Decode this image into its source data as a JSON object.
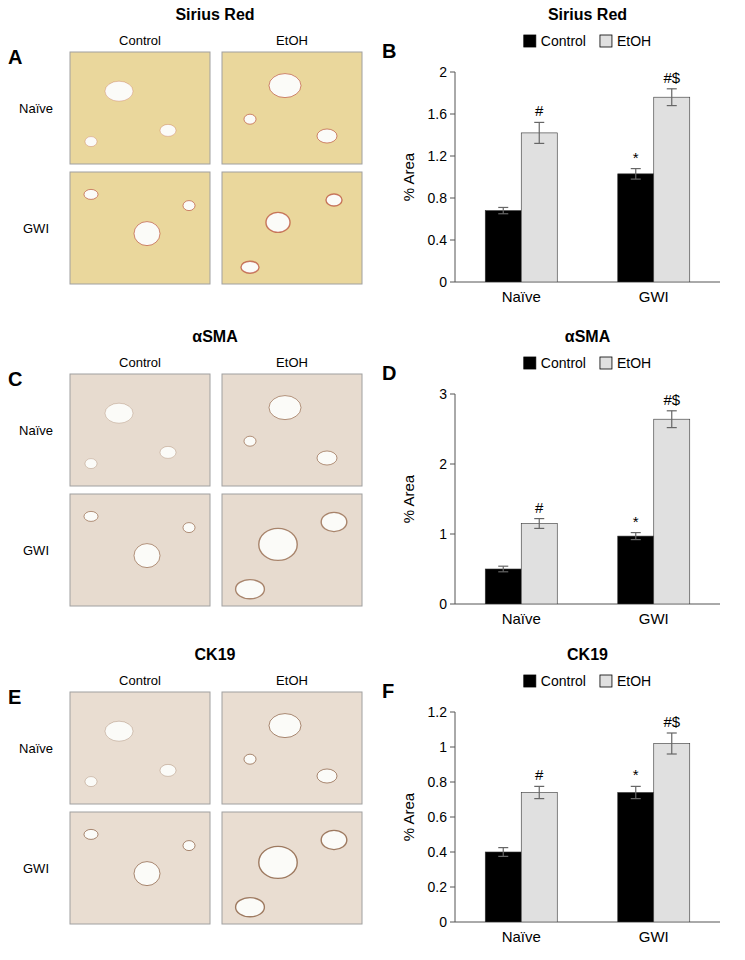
{
  "image_panels": [
    {
      "panel": "A",
      "title": "Sirius Red",
      "columns": [
        "Control",
        "EtOH"
      ],
      "rows": [
        "Naïve",
        "GWI"
      ]
    },
    {
      "panel": "C",
      "title": "αSMA",
      "columns": [
        "Control",
        "EtOH"
      ],
      "rows": [
        "Naïve",
        "GWI"
      ]
    },
    {
      "panel": "E",
      "title": "CK19",
      "columns": [
        "Control",
        "EtOH"
      ],
      "rows": [
        "Naïve",
        "GWI"
      ]
    }
  ],
  "chart_data": [
    {
      "type": "bar",
      "panel": "B",
      "title": "Sirius Red",
      "y_label": "% Area",
      "legend": "top",
      "categories": [
        "Naïve",
        "GWI"
      ],
      "series": [
        {
          "name": "Control",
          "color": "#000000",
          "values": [
            0.68,
            1.03
          ],
          "errors": [
            0.03,
            0.05
          ],
          "annotations": [
            null,
            "*"
          ]
        },
        {
          "name": "EtOH",
          "color": "#e0e0e0",
          "values": [
            1.42,
            1.76
          ],
          "errors": [
            0.1,
            0.08
          ],
          "annotations": [
            "#",
            "#$"
          ]
        }
      ],
      "ylim": [
        0,
        2
      ],
      "yticks": [
        0,
        0.4,
        0.8,
        1.2,
        1.6,
        2
      ],
      "grid": false
    },
    {
      "type": "bar",
      "panel": "D",
      "title": "αSMA",
      "y_label": "% Area",
      "legend": "top",
      "categories": [
        "Naïve",
        "GWI"
      ],
      "series": [
        {
          "name": "Control",
          "color": "#000000",
          "values": [
            0.5,
            0.97
          ],
          "errors": [
            0.04,
            0.05
          ],
          "annotations": [
            null,
            "*"
          ]
        },
        {
          "name": "EtOH",
          "color": "#e0e0e0",
          "values": [
            1.15,
            2.64
          ],
          "errors": [
            0.07,
            0.12
          ],
          "annotations": [
            "#",
            "#$"
          ]
        }
      ],
      "ylim": [
        0,
        3
      ],
      "yticks": [
        0,
        1,
        2,
        3
      ],
      "grid": false
    },
    {
      "type": "bar",
      "panel": "F",
      "title": "CK19",
      "y_label": "% Area",
      "legend": "top",
      "categories": [
        "Naïve",
        "GWI"
      ],
      "series": [
        {
          "name": "Control",
          "color": "#000000",
          "values": [
            0.4,
            0.74
          ],
          "errors": [
            0.025,
            0.035
          ],
          "annotations": [
            null,
            "*"
          ]
        },
        {
          "name": "EtOH",
          "color": "#e0e0e0",
          "values": [
            0.74,
            1.02
          ],
          "errors": [
            0.035,
            0.06
          ],
          "annotations": [
            "#",
            "#$"
          ]
        }
      ],
      "ylim": [
        0,
        1.2
      ],
      "yticks": [
        0,
        0.2,
        0.4,
        0.6,
        0.8,
        1,
        1.2
      ],
      "grid": false
    }
  ]
}
